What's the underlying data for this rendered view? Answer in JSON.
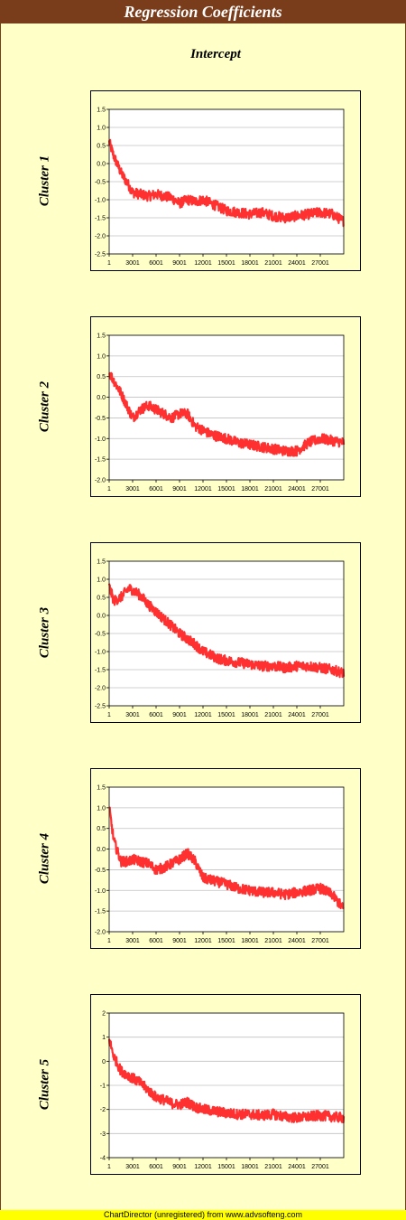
{
  "title": "Regression Coefficients",
  "column_header": "Intercept",
  "footer": "ChartDirector (unregistered) from www.advsofteng.com",
  "colors": {
    "title_bg": "#7a3d1b",
    "background": "#ffffc8",
    "series": "#ff3030",
    "grid": "#c0c0c0",
    "footer_bg": "#ffff00"
  },
  "chart_data": [
    {
      "type": "line",
      "row_label": "Cluster 1",
      "x_ticks": [
        "1",
        "3001",
        "6001",
        "9001",
        "12001",
        "15001",
        "18001",
        "21001",
        "24001",
        "27001"
      ],
      "x_range": [
        1,
        30000
      ],
      "ylim": [
        -2.5,
        1.5
      ],
      "y_ticks": [
        "1.5",
        "1.0",
        "0.5",
        "0.0",
        "-0.5",
        "-1.0",
        "-1.5",
        "-2.0",
        "-2.5"
      ],
      "y_tick_values": [
        1.5,
        1.0,
        0.5,
        0.0,
        -0.5,
        -1.0,
        -1.5,
        -2.0,
        -2.5
      ],
      "grid": true,
      "series": [
        {
          "x": [
            1,
            600,
            1500,
            2500,
            3001,
            4000,
            5000,
            6001,
            7000,
            8000,
            9001,
            10000,
            11000,
            12001,
            13000,
            14000,
            15001,
            16500,
            18001,
            19500,
            21001,
            22500,
            24001,
            25500,
            27001,
            28500,
            30000
          ],
          "values": [
            0.6,
            0.2,
            -0.25,
            -0.6,
            -0.8,
            -0.85,
            -0.9,
            -0.85,
            -0.9,
            -0.95,
            -1.1,
            -1.0,
            -1.05,
            -1.0,
            -1.1,
            -1.2,
            -1.3,
            -1.35,
            -1.4,
            -1.35,
            -1.45,
            -1.5,
            -1.45,
            -1.4,
            -1.35,
            -1.4,
            -1.6
          ]
        }
      ]
    },
    {
      "type": "line",
      "row_label": "Cluster 2",
      "x_ticks": [
        "1",
        "3001",
        "6001",
        "9001",
        "12001",
        "15001",
        "18001",
        "21001",
        "24001",
        "27001"
      ],
      "x_range": [
        1,
        30000
      ],
      "ylim": [
        -2.0,
        1.5
      ],
      "y_ticks": [
        "1.5",
        "1.0",
        "0.5",
        "0.0",
        "-0.5",
        "-1.0",
        "-1.5",
        "-2.0"
      ],
      "y_tick_values": [
        1.5,
        1.0,
        0.5,
        0.0,
        -0.5,
        -1.0,
        -1.5,
        -2.0
      ],
      "grid": true,
      "series": [
        {
          "x": [
            1,
            600,
            1500,
            2500,
            3001,
            4000,
            5000,
            6001,
            7000,
            8000,
            9001,
            10000,
            11000,
            12001,
            13000,
            14000,
            15001,
            16500,
            18001,
            19500,
            21001,
            22500,
            24001,
            25500,
            27001,
            28500,
            30000
          ],
          "values": [
            0.6,
            0.4,
            0.1,
            -0.3,
            -0.5,
            -0.3,
            -0.2,
            -0.3,
            -0.4,
            -0.5,
            -0.4,
            -0.4,
            -0.7,
            -0.8,
            -0.9,
            -0.95,
            -1.0,
            -1.1,
            -1.15,
            -1.2,
            -1.25,
            -1.3,
            -1.3,
            -1.1,
            -1.0,
            -1.05,
            -1.1
          ]
        }
      ]
    },
    {
      "type": "line",
      "row_label": "Cluster 3",
      "x_ticks": [
        "1",
        "3001",
        "6001",
        "9001",
        "12001",
        "15001",
        "18001",
        "21001",
        "24001",
        "27001"
      ],
      "x_range": [
        1,
        30000
      ],
      "ylim": [
        -2.5,
        1.5
      ],
      "y_ticks": [
        "1.5",
        "1.0",
        "0.5",
        "0.0",
        "-0.5",
        "-1.0",
        "-1.5",
        "-2.0",
        "-2.5"
      ],
      "y_tick_values": [
        1.5,
        1.0,
        0.5,
        0.0,
        -0.5,
        -1.0,
        -1.5,
        -2.0,
        -2.5
      ],
      "grid": true,
      "series": [
        {
          "x": [
            1,
            600,
            1500,
            2500,
            3001,
            4000,
            5000,
            6001,
            7000,
            8000,
            9001,
            10000,
            11000,
            12001,
            13000,
            14000,
            15001,
            16500,
            18001,
            19500,
            21001,
            22500,
            24001,
            25500,
            27001,
            28500,
            30000
          ],
          "values": [
            0.8,
            0.4,
            0.5,
            0.75,
            0.7,
            0.55,
            0.3,
            0.1,
            -0.1,
            -0.3,
            -0.5,
            -0.65,
            -0.8,
            -1.0,
            -1.1,
            -1.2,
            -1.25,
            -1.3,
            -1.35,
            -1.4,
            -1.4,
            -1.45,
            -1.4,
            -1.4,
            -1.45,
            -1.5,
            -1.6
          ]
        }
      ]
    },
    {
      "type": "line",
      "row_label": "Cluster 4",
      "x_ticks": [
        "1",
        "3001",
        "6001",
        "9001",
        "12001",
        "15001",
        "18001",
        "21001",
        "24001",
        "27001"
      ],
      "x_range": [
        1,
        30000
      ],
      "ylim": [
        -2.0,
        1.5
      ],
      "y_ticks": [
        "1.5",
        "1.0",
        "0.5",
        "0.0",
        "-0.5",
        "-1.0",
        "-1.5",
        "-2.0"
      ],
      "y_tick_values": [
        1.5,
        1.0,
        0.5,
        0.0,
        -0.5,
        -1.0,
        -1.5,
        -2.0
      ],
      "grid": true,
      "series": [
        {
          "x": [
            1,
            600,
            1500,
            2500,
            3001,
            4000,
            5000,
            6001,
            7000,
            8000,
            9001,
            10000,
            11000,
            12001,
            13000,
            14000,
            15001,
            16500,
            18001,
            19500,
            21001,
            22500,
            24001,
            25500,
            27001,
            28500,
            30000
          ],
          "values": [
            1.0,
            0.2,
            -0.3,
            -0.3,
            -0.25,
            -0.3,
            -0.35,
            -0.5,
            -0.45,
            -0.35,
            -0.25,
            -0.1,
            -0.3,
            -0.7,
            -0.75,
            -0.8,
            -0.85,
            -0.95,
            -1.0,
            -1.05,
            -1.05,
            -1.1,
            -1.05,
            -1.0,
            -0.95,
            -1.1,
            -1.45
          ]
        }
      ]
    },
    {
      "type": "line",
      "row_label": "Cluster 5",
      "x_ticks": [
        "1",
        "3001",
        "6001",
        "9001",
        "12001",
        "15001",
        "18001",
        "21001",
        "24001",
        "27001"
      ],
      "x_range": [
        1,
        30000
      ],
      "ylim": [
        -4,
        2
      ],
      "y_ticks": [
        "2",
        "1",
        "0",
        "-1",
        "-2",
        "-3",
        "-4"
      ],
      "y_tick_values": [
        2,
        1,
        0,
        -1,
        -2,
        -3,
        -4
      ],
      "grid": true,
      "series": [
        {
          "x": [
            1,
            600,
            1500,
            2500,
            3001,
            4000,
            5000,
            6001,
            7000,
            8000,
            9001,
            10000,
            11000,
            12001,
            13000,
            14000,
            15001,
            16500,
            18001,
            19500,
            21001,
            22500,
            24001,
            25500,
            27001,
            28500,
            30000
          ],
          "values": [
            0.9,
            0.2,
            -0.4,
            -0.6,
            -0.7,
            -0.9,
            -1.2,
            -1.5,
            -1.6,
            -1.75,
            -1.8,
            -1.7,
            -1.9,
            -2.0,
            -2.05,
            -2.1,
            -2.15,
            -2.2,
            -2.2,
            -2.25,
            -2.2,
            -2.3,
            -2.35,
            -2.3,
            -2.25,
            -2.3,
            -2.35
          ]
        }
      ]
    }
  ]
}
